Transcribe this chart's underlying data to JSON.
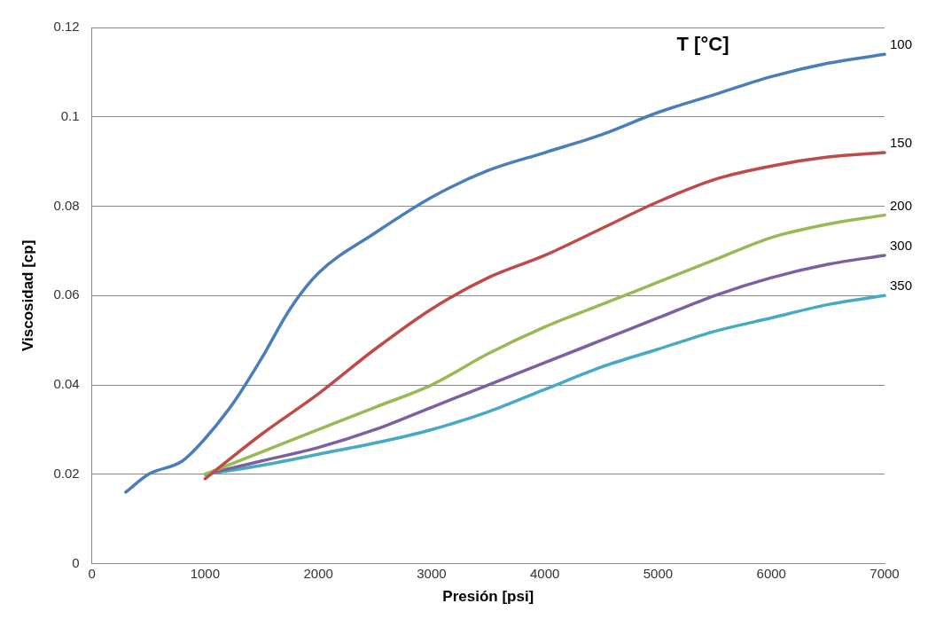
{
  "chart_data": {
    "type": "line",
    "xlabel": "Presión [psi]",
    "ylabel": "Viscosidad [cp]",
    "legend_title": "T [°C]",
    "xlim": [
      0,
      7000
    ],
    "xticks": [
      0,
      1000,
      2000,
      3000,
      4000,
      5000,
      6000,
      7000
    ],
    "ylim": [
      0,
      0.12
    ],
    "yticks": [
      0,
      0.02,
      0.04,
      0.06,
      0.08,
      0.1,
      0.12
    ],
    "grid": "y",
    "marker": "none",
    "line_style": "solid",
    "series": [
      {
        "name": "100",
        "color": "#4a7ebb",
        "x": [
          300,
          500,
          800,
          1000,
          1250,
          1500,
          1750,
          2000,
          2500,
          3000,
          3500,
          4000,
          4500,
          5000,
          5500,
          6000,
          6500,
          7000
        ],
        "values": [
          0.016,
          0.02,
          0.023,
          0.028,
          0.036,
          0.046,
          0.057,
          0.065,
          0.074,
          0.082,
          0.088,
          0.092,
          0.096,
          0.101,
          0.105,
          0.109,
          0.112,
          0.114
        ]
      },
      {
        "name": "150",
        "color": "#be4b48",
        "x": [
          1000,
          1500,
          2000,
          2500,
          3000,
          3500,
          4000,
          4500,
          5000,
          5500,
          6000,
          6500,
          7000
        ],
        "values": [
          0.019,
          0.029,
          0.038,
          0.048,
          0.057,
          0.064,
          0.069,
          0.075,
          0.081,
          0.086,
          0.089,
          0.091,
          0.092
        ]
      },
      {
        "name": "200",
        "color": "#98b954",
        "x": [
          1000,
          1500,
          2000,
          2500,
          3000,
          3500,
          4000,
          4500,
          5000,
          5500,
          6000,
          6500,
          7000
        ],
        "values": [
          0.02,
          0.025,
          0.03,
          0.035,
          0.04,
          0.047,
          0.053,
          0.058,
          0.063,
          0.068,
          0.073,
          0.076,
          0.078
        ]
      },
      {
        "name": "300",
        "color": "#7d60a0",
        "x": [
          1000,
          1500,
          2000,
          2500,
          3000,
          3500,
          4000,
          4500,
          5000,
          5500,
          6000,
          6500,
          7000
        ],
        "values": [
          0.02,
          0.023,
          0.026,
          0.03,
          0.035,
          0.04,
          0.045,
          0.05,
          0.055,
          0.06,
          0.064,
          0.067,
          0.069
        ]
      },
      {
        "name": "350",
        "color": "#46aac5",
        "x": [
          1000,
          1500,
          2000,
          2500,
          3000,
          3500,
          4000,
          4500,
          5000,
          5500,
          6000,
          6500,
          7000
        ],
        "values": [
          0.02,
          0.022,
          0.0245,
          0.027,
          0.03,
          0.034,
          0.039,
          0.044,
          0.048,
          0.052,
          0.055,
          0.058,
          0.06
        ]
      }
    ]
  }
}
